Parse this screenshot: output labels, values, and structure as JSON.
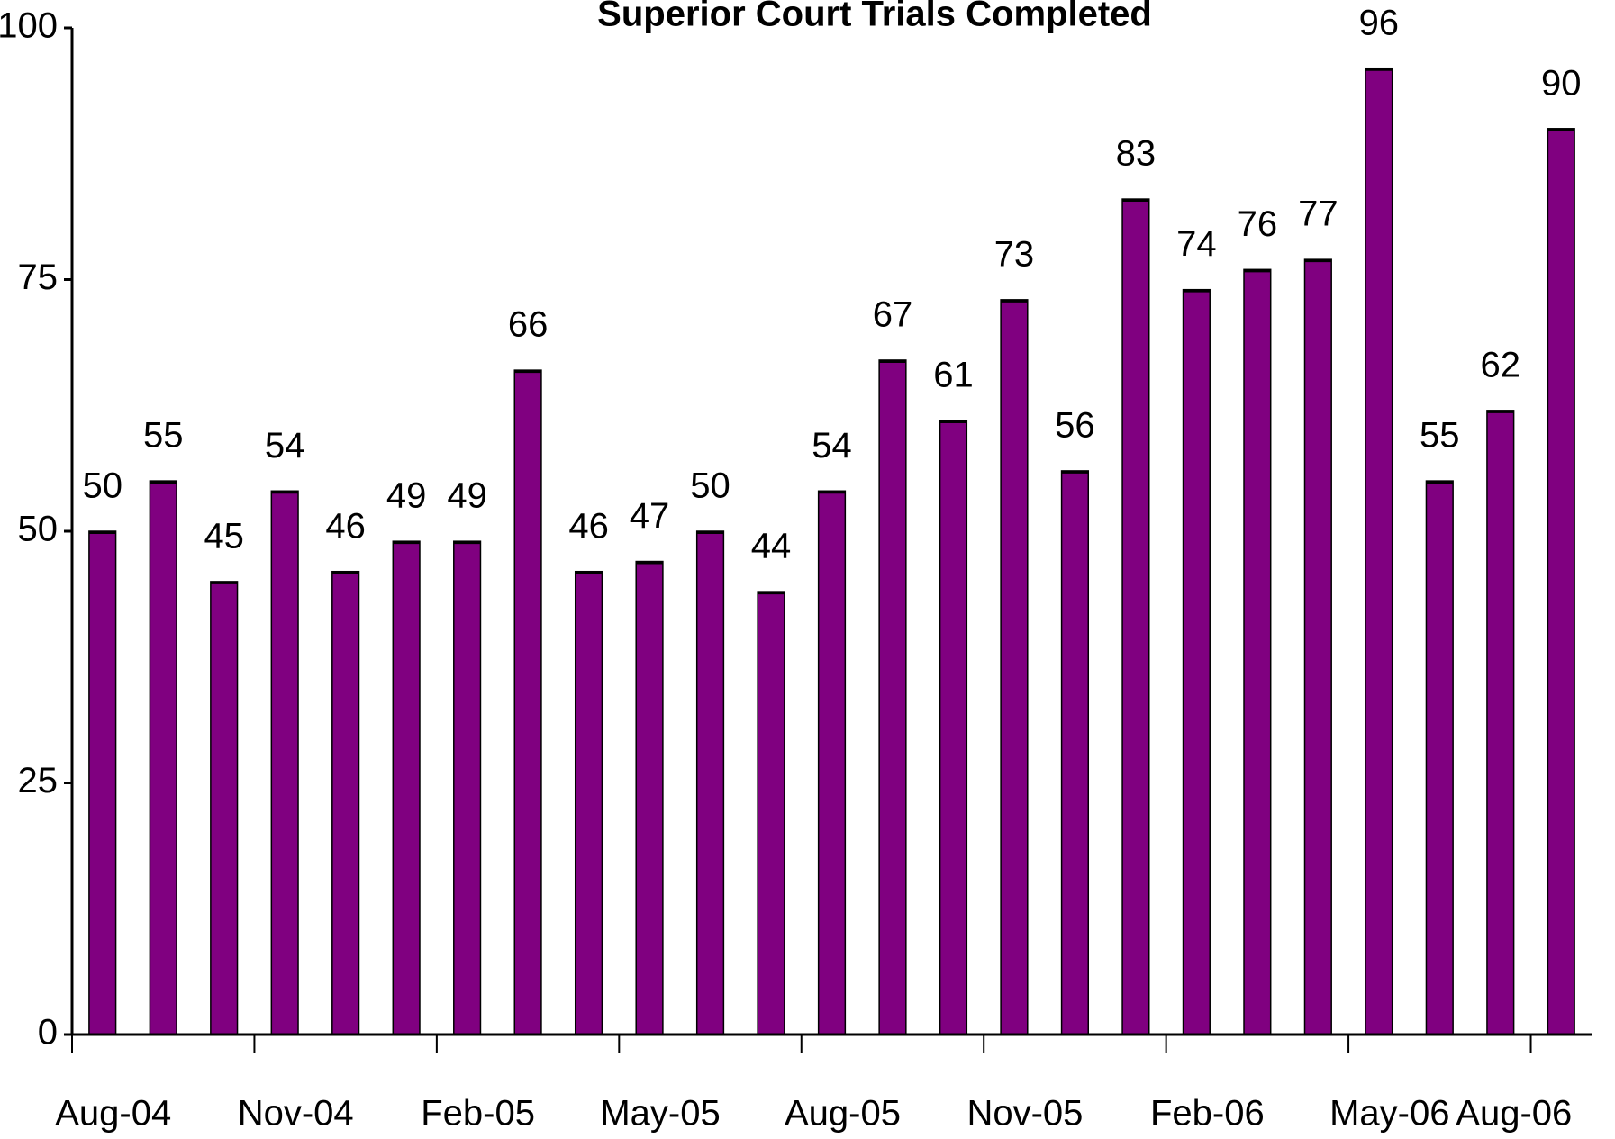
{
  "chart_data": {
    "type": "bar",
    "title": "Superior Court Trials Completed",
    "categories": [
      "Aug-04",
      null,
      null,
      "Nov-04",
      null,
      null,
      "Feb-05",
      null,
      null,
      "May-05",
      null,
      null,
      "Aug-05",
      null,
      null,
      "Nov-05",
      null,
      null,
      "Feb-06",
      null,
      null,
      "May-06",
      null,
      null,
      "Aug-06"
    ],
    "values": [
      50,
      55,
      45,
      54,
      46,
      49,
      49,
      66,
      46,
      47,
      50,
      44,
      54,
      67,
      61,
      73,
      56,
      83,
      74,
      76,
      77,
      96,
      55,
      62,
      90
    ],
    "color": "#800080",
    "ylim": [
      0,
      100
    ],
    "yticks": [
      0,
      25,
      50,
      75,
      100
    ],
    "grid": false
  }
}
